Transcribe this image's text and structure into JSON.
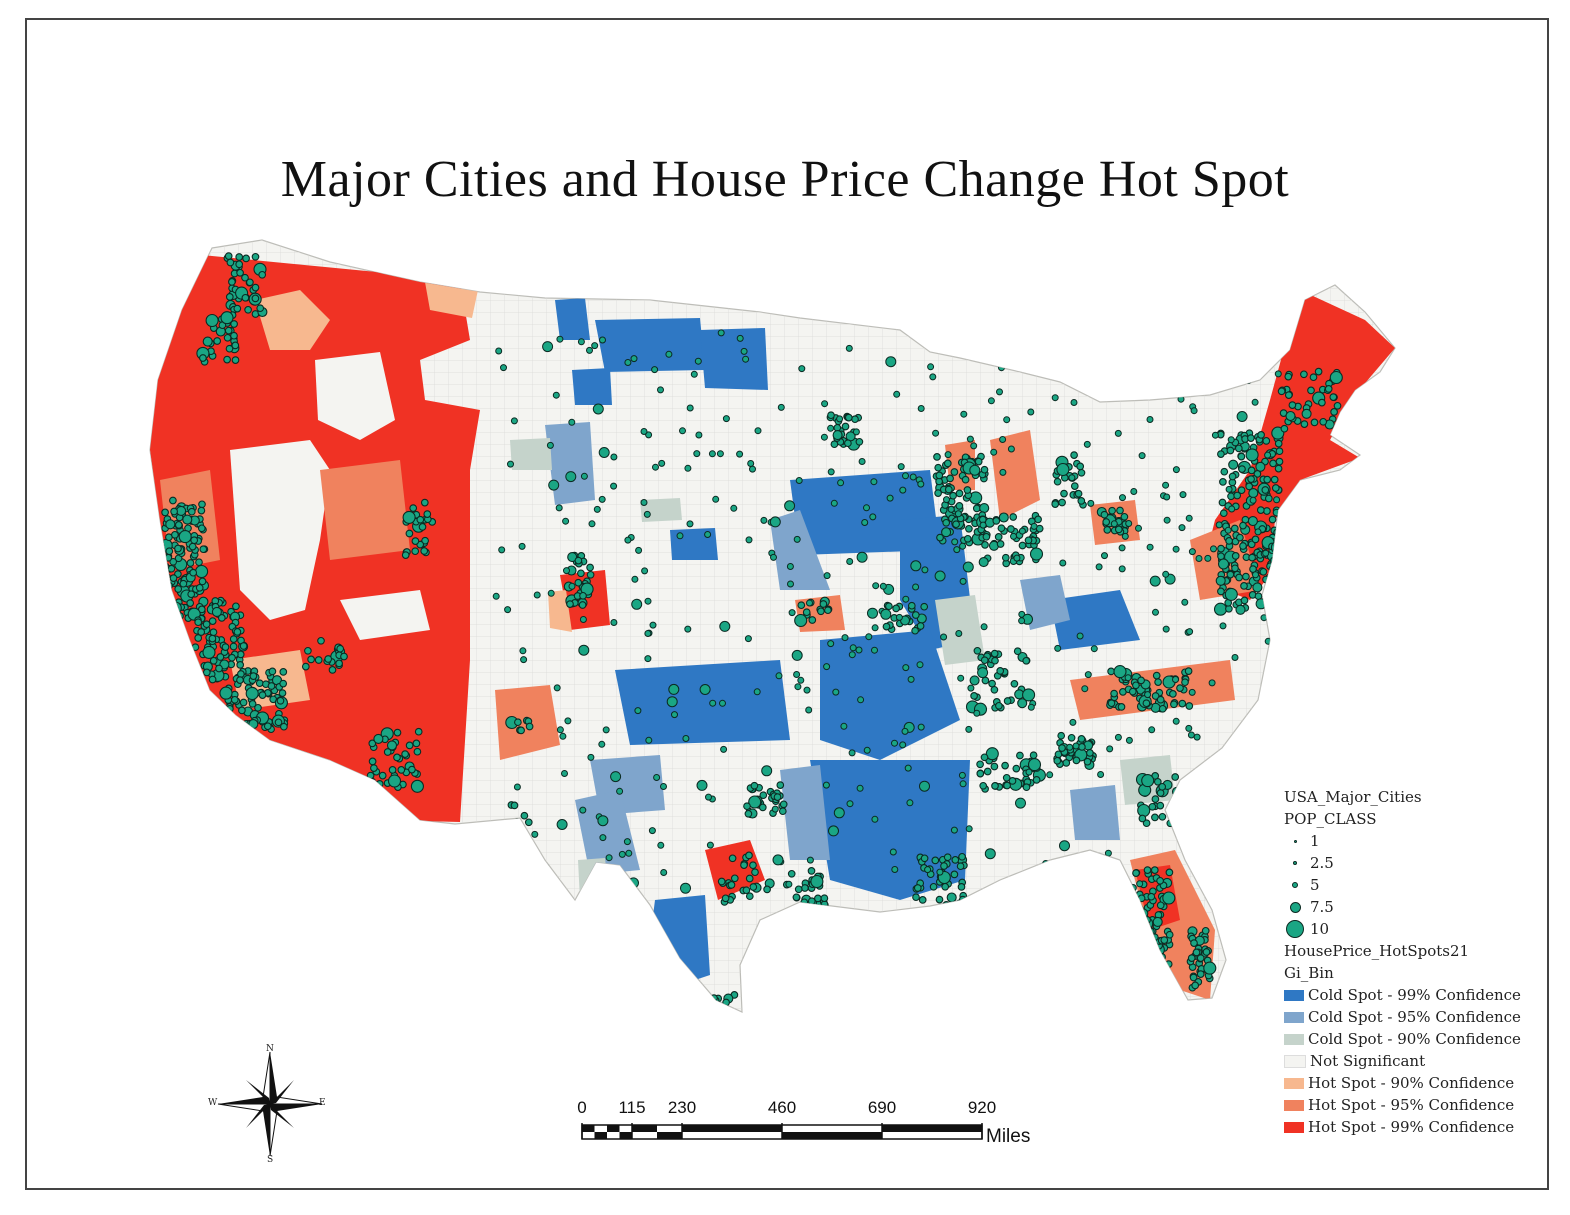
{
  "title": "Major Cities and House Price Change Hot Spot",
  "legend": {
    "cities_layer": "USA_Major_Cities",
    "cities_field": "POP_CLASS",
    "pop_classes": [
      {
        "label": "1",
        "size": 3
      },
      {
        "label": "2.5",
        "size": 4
      },
      {
        "label": "5",
        "size": 6
      },
      {
        "label": "7.5",
        "size": 11
      },
      {
        "label": "10",
        "size": 18
      }
    ],
    "hotspot_layer": "HousePrice_HotSpots21",
    "hotspot_field": "Gi_Bin",
    "classes": [
      {
        "label": "Cold Spot - 99% Confidence",
        "color": "#2f78c4"
      },
      {
        "label": "Cold Spot - 95% Confidence",
        "color": "#7fa5cc"
      },
      {
        "label": "Cold Spot - 90% Confidence",
        "color": "#c5d3cb"
      },
      {
        "label": "Not Significant",
        "color": "#f4f4f1"
      },
      {
        "label": "Hot Spot - 90% Confidence",
        "color": "#f7b88f"
      },
      {
        "label": "Hot Spot - 95% Confidence",
        "color": "#f0825e"
      },
      {
        "label": "Hot Spot - 99% Confidence",
        "color": "#f03224"
      }
    ],
    "city_color": "#1aa684",
    "city_outline": "#0b2a22"
  },
  "scale_bar": {
    "ticks": [
      "0",
      "115",
      "230",
      "460",
      "690",
      "920"
    ],
    "tick_values": [
      0,
      115,
      230,
      460,
      690,
      920
    ],
    "units": "Miles"
  },
  "compass": {
    "n": "N",
    "s": "S",
    "e": "E",
    "w": "W"
  }
}
